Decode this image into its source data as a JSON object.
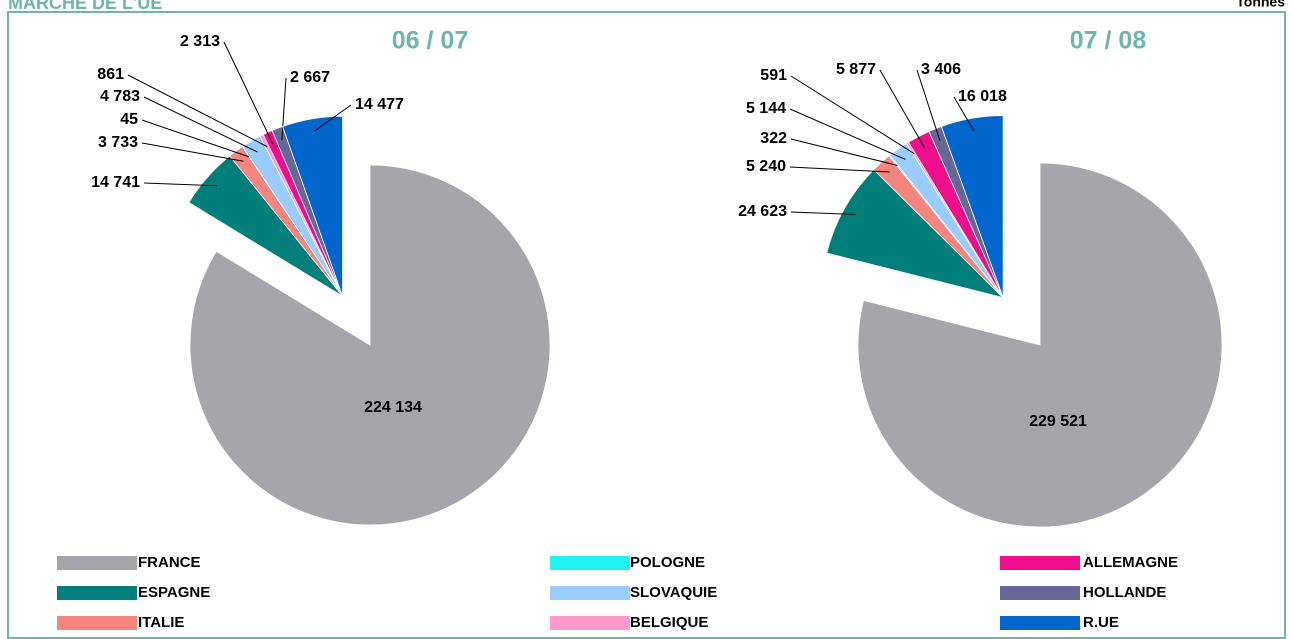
{
  "chart_data": {
    "type": "pie",
    "title": "MARCHE DE L'UE",
    "units": "Tonnes",
    "categories": [
      "FRANCE",
      "ESPAGNE",
      "ITALIE",
      "POLOGNE",
      "SLOVAQUIE",
      "BELGIQUE",
      "ALLEMAGNE",
      "HOLLANDE",
      "R.UE"
    ],
    "colors": [
      "#a6a6aa",
      "#007f7a",
      "#f4857f",
      "#22f2f2",
      "#99ccff",
      "#ff99cc",
      "#ee0d8a",
      "#666699",
      "#0066cc"
    ],
    "series": [
      {
        "name": "06 / 07",
        "values": [
          224134,
          14741,
          3733,
          45,
          4783,
          861,
          2313,
          2667,
          14477
        ],
        "value_labels": [
          "224 134",
          "14 741",
          "3 733",
          "45",
          "4 783",
          "861",
          "2 313",
          "2 667",
          "14 477"
        ]
      },
      {
        "name": "07 / 08",
        "values": [
          229521,
          24623,
          5240,
          322,
          5144,
          591,
          5877,
          3406,
          16018
        ],
        "value_labels": [
          "229 521",
          "24 623",
          "5 240",
          "322",
          "5 144",
          "591",
          "5 877",
          "3 406",
          "16 018"
        ]
      }
    ]
  }
}
